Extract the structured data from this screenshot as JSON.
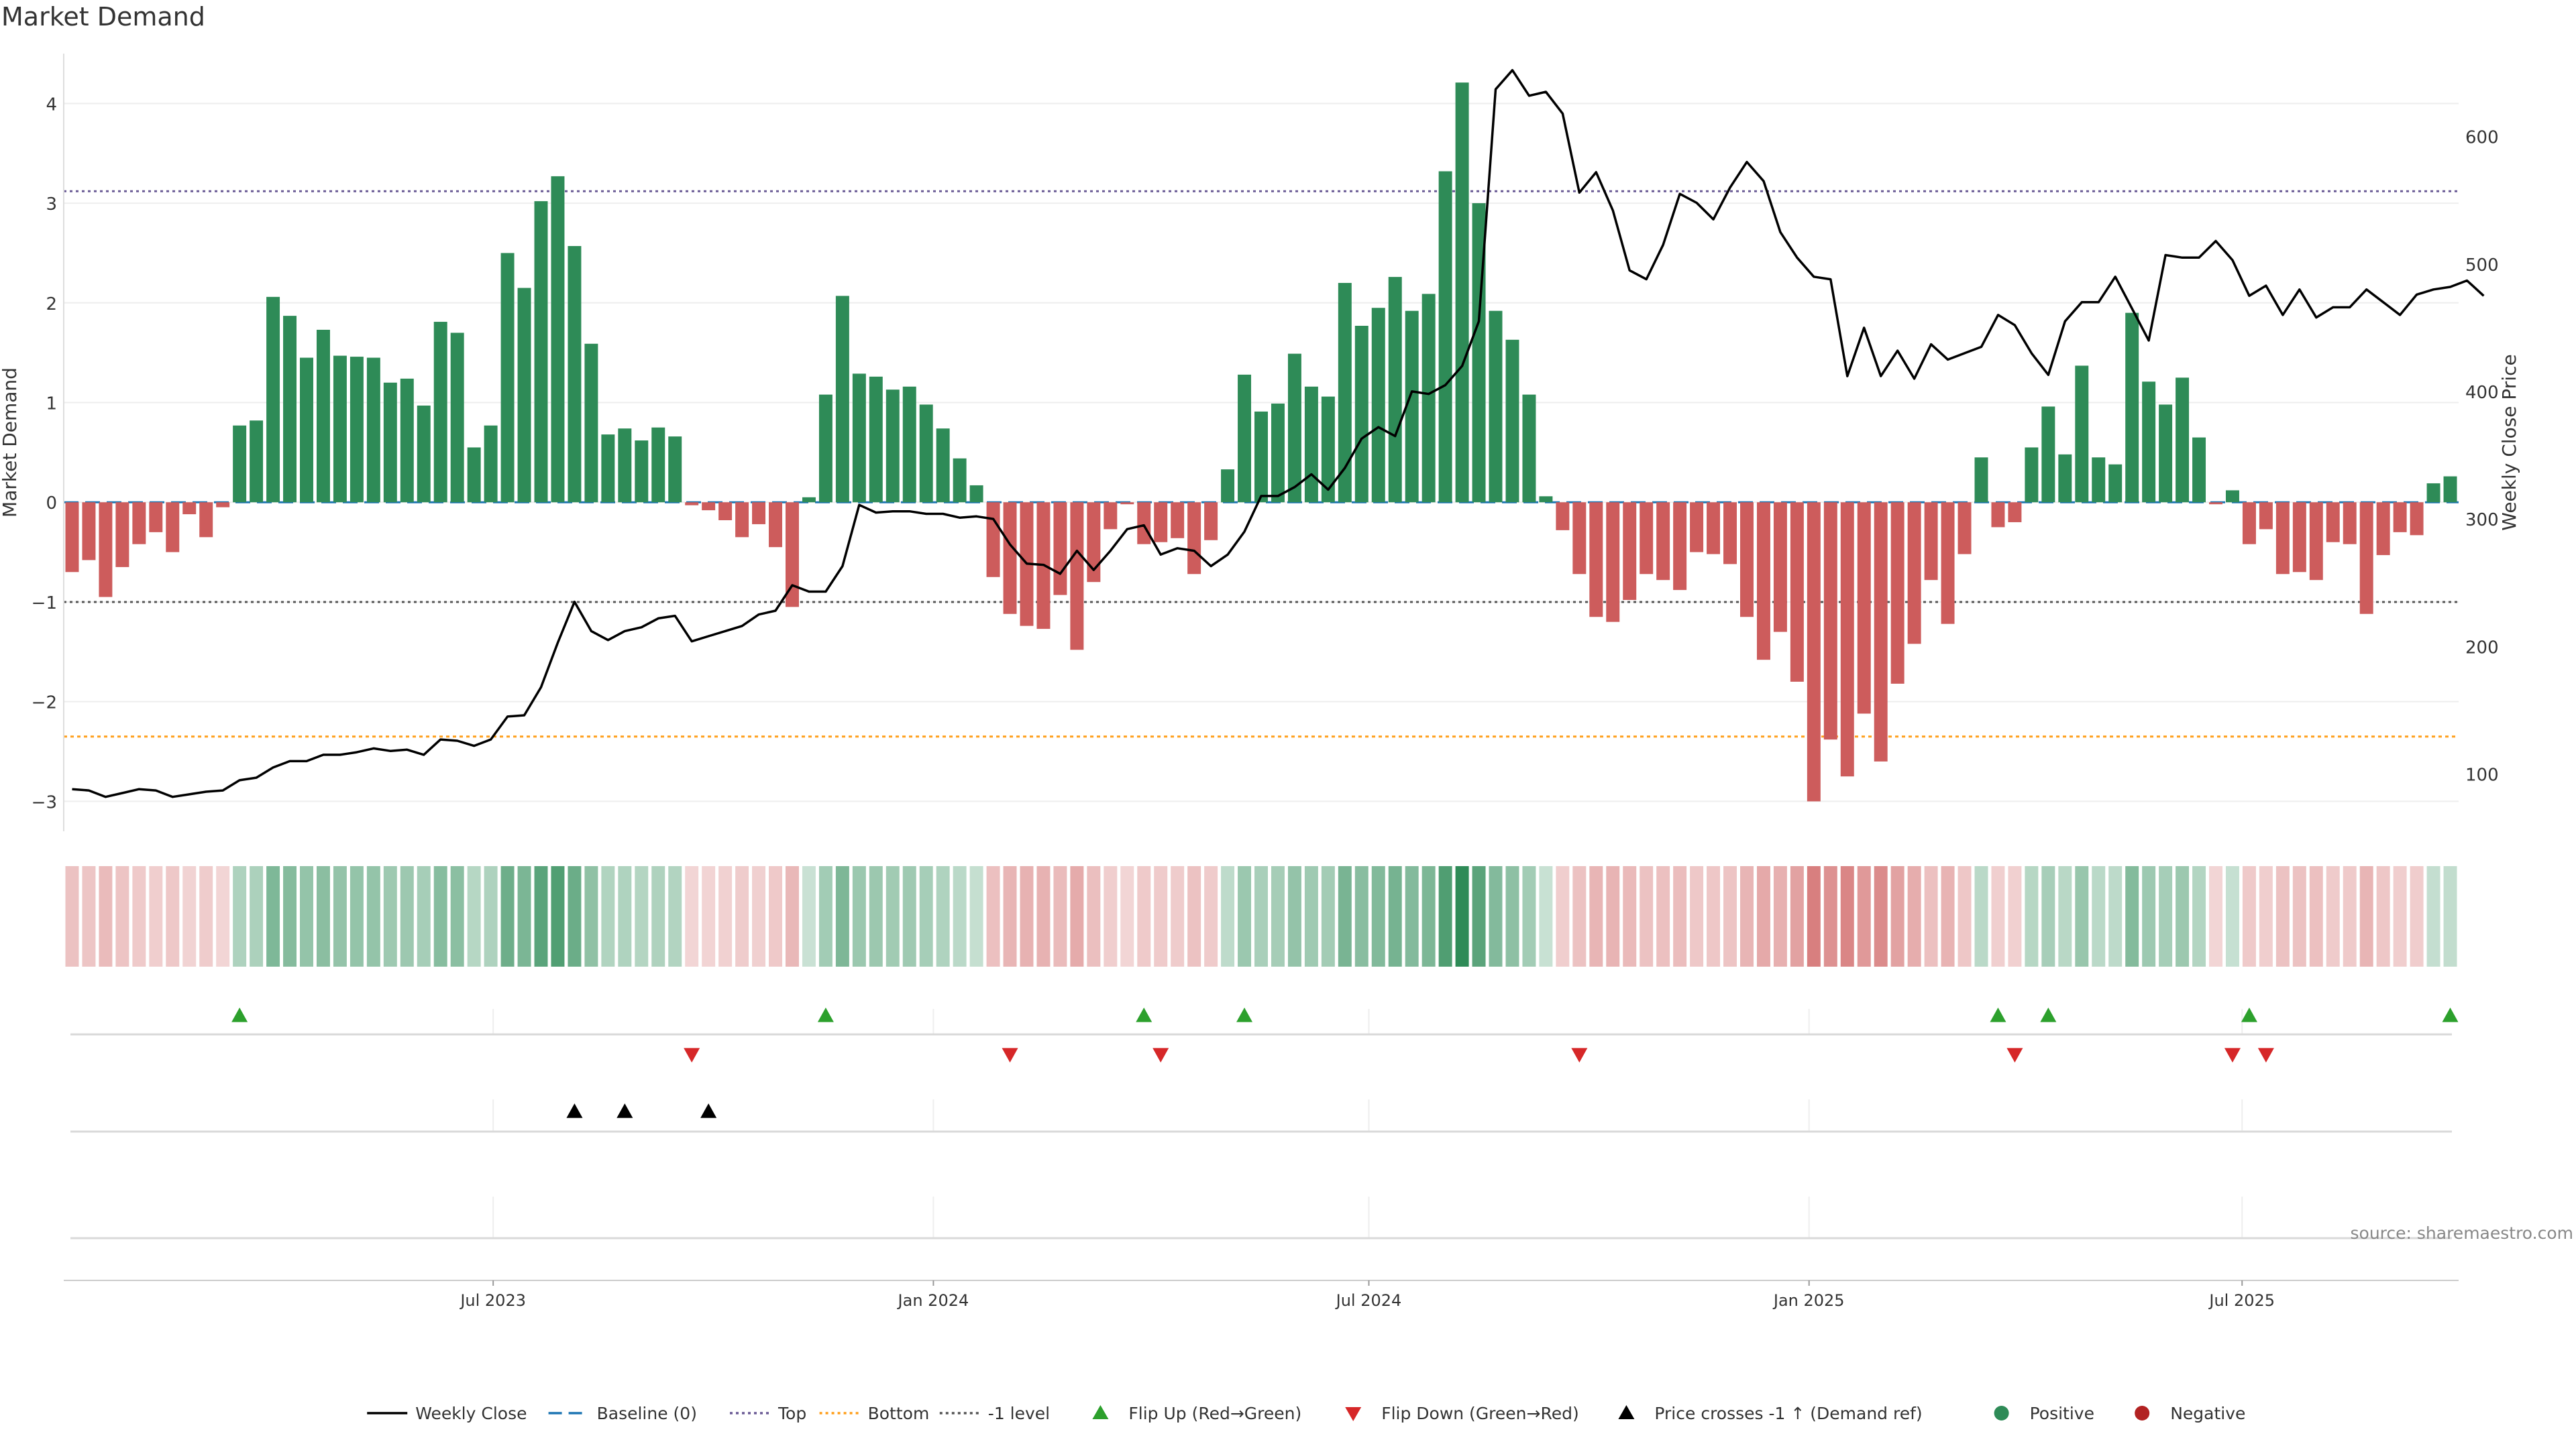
{
  "title": "Market Demand",
  "source": "source: sharemaestro.com",
  "colors": {
    "positive": "#2e8b57",
    "negative": "#cd5c5c",
    "price_line": "#000000",
    "baseline": "#1f77b4",
    "top_line": "#6b5b95",
    "bottom_line": "#ff9f1c",
    "minus_one_line": "#555555",
    "flip_up": "#2ca02c",
    "flip_down": "#d62728",
    "cross": "#000000"
  },
  "legend": [
    {
      "key": "weekly_close",
      "label": "Weekly Close",
      "type": "line",
      "color": "#000000"
    },
    {
      "key": "baseline",
      "label": "Baseline (0)",
      "type": "dash",
      "color": "#1f77b4"
    },
    {
      "key": "top",
      "label": "Top",
      "type": "dot",
      "color": "#6b5b95"
    },
    {
      "key": "bottom",
      "label": "Bottom",
      "type": "dot",
      "color": "#ff9f1c"
    },
    {
      "key": "minus_one",
      "label": "-1 level",
      "type": "dot",
      "color": "#555555"
    },
    {
      "key": "flip_up",
      "label": "Flip Up (Red→Green)",
      "type": "tri-up",
      "color": "#2ca02c"
    },
    {
      "key": "flip_down",
      "label": "Flip Down (Green→Red)",
      "type": "tri-down",
      "color": "#d62728"
    },
    {
      "key": "price_cross",
      "label": "Price crosses -1 ↑ (Demand ref)",
      "type": "tri-up",
      "color": "#000000"
    },
    {
      "key": "positive",
      "label": "Positive",
      "type": "circle",
      "color": "#2e8b57"
    },
    {
      "key": "negative",
      "label": "Negative",
      "type": "circle",
      "color": "#b22222"
    }
  ],
  "chart_data": {
    "type": "bar",
    "title": "Market Demand",
    "ylabel": "Market Demand",
    "y2label": "Weekly Close Price",
    "ylim": [
      -3.3,
      4.5
    ],
    "y2lim": [
      55,
      665
    ],
    "yticks": [
      -3,
      -2,
      -1,
      0,
      1,
      2,
      3,
      4
    ],
    "y2ticks": [
      100,
      200,
      300,
      400,
      500,
      600
    ],
    "x_start": "2023-01-06",
    "x_step_days": 7,
    "x_ticks": [
      {
        "date": "2023-07-01",
        "label": "Jul 2023"
      },
      {
        "date": "2024-01-01",
        "label": "Jan 2024"
      },
      {
        "date": "2024-07-01",
        "label": "Jul 2024"
      },
      {
        "date": "2025-01-01",
        "label": "Jan 2025"
      },
      {
        "date": "2025-07-01",
        "label": "Jul 2025"
      }
    ],
    "reference_lines": {
      "baseline": 0,
      "top": 3.12,
      "bottom": -2.35,
      "minus_one": -1.0
    },
    "demand": [
      -0.7,
      -0.58,
      -0.95,
      -0.65,
      -0.42,
      -0.3,
      -0.5,
      -0.12,
      -0.35,
      -0.05,
      0.77,
      0.82,
      2.06,
      1.87,
      1.45,
      1.73,
      1.47,
      1.46,
      1.45,
      1.2,
      1.24,
      0.97,
      1.81,
      1.7,
      0.55,
      0.77,
      2.5,
      2.15,
      3.02,
      3.27,
      2.57,
      1.59,
      0.68,
      0.74,
      0.62,
      0.75,
      0.66,
      -0.03,
      -0.08,
      -0.18,
      -0.35,
      -0.22,
      -0.45,
      -1.05,
      0.05,
      1.08,
      2.07,
      1.29,
      1.26,
      1.13,
      1.16,
      0.98,
      0.74,
      0.44,
      0.17,
      -0.75,
      -1.12,
      -1.24,
      -1.27,
      -0.93,
      -1.48,
      -0.8,
      -0.27,
      -0.02,
      -0.42,
      -0.4,
      -0.36,
      -0.72,
      -0.38,
      0.33,
      1.28,
      0.91,
      0.99,
      1.49,
      1.16,
      1.06,
      2.2,
      1.77,
      1.95,
      2.26,
      1.92,
      2.09,
      3.32,
      4.21,
      3.0,
      1.92,
      1.63,
      1.08,
      0.06,
      -0.28,
      -0.72,
      -1.15,
      -1.2,
      -0.98,
      -0.72,
      -0.78,
      -0.88,
      -0.5,
      -0.52,
      -0.62,
      -1.15,
      -1.58,
      -1.3,
      -1.8,
      -3.0,
      -2.38,
      -2.75,
      -2.12,
      -2.6,
      -1.82,
      -1.42,
      -0.78,
      -1.22,
      -0.52,
      0.45,
      -0.25,
      -0.2,
      0.55,
      0.96,
      0.48,
      1.37,
      0.45,
      0.38,
      1.9,
      1.21,
      0.98,
      1.25,
      0.65,
      -0.02,
      0.12,
      -0.42,
      -0.27,
      -0.72,
      -0.7,
      -0.78,
      -0.4,
      -0.42,
      -1.12,
      -0.53,
      -0.3,
      -0.33,
      0.19,
      0.26
    ],
    "weekly_close": [
      88,
      87,
      82,
      85,
      88,
      87,
      82,
      84,
      86,
      87,
      95,
      97,
      105,
      110,
      110,
      115,
      115,
      117,
      120,
      118,
      119,
      115,
      127,
      126,
      122,
      127,
      145,
      146,
      168,
      203,
      235,
      212,
      205,
      212,
      215,
      222,
      224,
      204,
      208,
      212,
      216,
      225,
      228,
      248,
      243,
      243,
      263,
      311,
      305,
      306,
      306,
      304,
      304,
      301,
      302,
      300,
      280,
      265,
      264,
      257,
      275,
      260,
      275,
      292,
      295,
      272,
      277,
      275,
      263,
      272,
      290,
      318,
      318,
      325,
      335,
      323,
      340,
      363,
      372,
      365,
      400,
      398,
      405,
      420,
      455,
      637,
      652,
      632,
      635,
      618,
      556,
      572,
      542,
      495,
      488,
      515,
      555,
      548,
      535,
      560,
      580,
      565,
      525,
      505,
      490,
      488,
      412,
      450,
      412,
      432,
      410,
      437,
      425,
      430,
      435,
      460,
      452,
      430,
      413,
      455,
      470,
      470,
      490,
      465,
      440,
      507,
      505,
      505,
      518,
      503,
      475,
      483,
      460,
      480,
      458,
      466,
      466,
      480,
      470,
      460,
      476,
      480,
      482,
      487,
      475
    ]
  },
  "flip_up_indices": [
    10,
    45,
    64,
    70,
    115,
    118,
    130,
    142
  ],
  "flip_down_indices": [
    37,
    56,
    65,
    90,
    116,
    129,
    131
  ],
  "price_cross_indices": [
    30,
    33,
    38
  ]
}
